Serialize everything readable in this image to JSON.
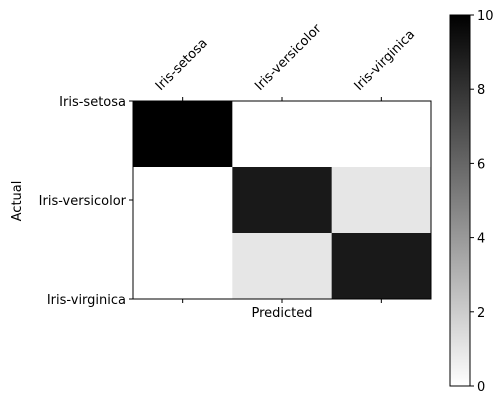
{
  "chart_data": {
    "type": "heatmap",
    "x_categories": [
      "Iris-setosa",
      "Iris-versicolor",
      "Iris-virginica"
    ],
    "y_categories": [
      "Iris-setosa",
      "Iris-versicolor",
      "Iris-virginica"
    ],
    "matrix": [
      [
        10,
        0,
        0
      ],
      [
        0,
        9,
        1
      ],
      [
        0,
        1,
        9
      ]
    ],
    "xlabel": "Predicted",
    "ylabel": "Actual",
    "colormap": "gray_r",
    "vmin": 0,
    "vmax": 10,
    "colorbar_ticks": [
      0,
      2,
      4,
      6,
      8,
      10
    ],
    "colorbar_tick_labels": [
      "0",
      "2",
      "4",
      "6",
      "8",
      "10"
    ],
    "colors": {
      "low": "#ffffff",
      "high": "#000000",
      "border": "#000000"
    }
  }
}
